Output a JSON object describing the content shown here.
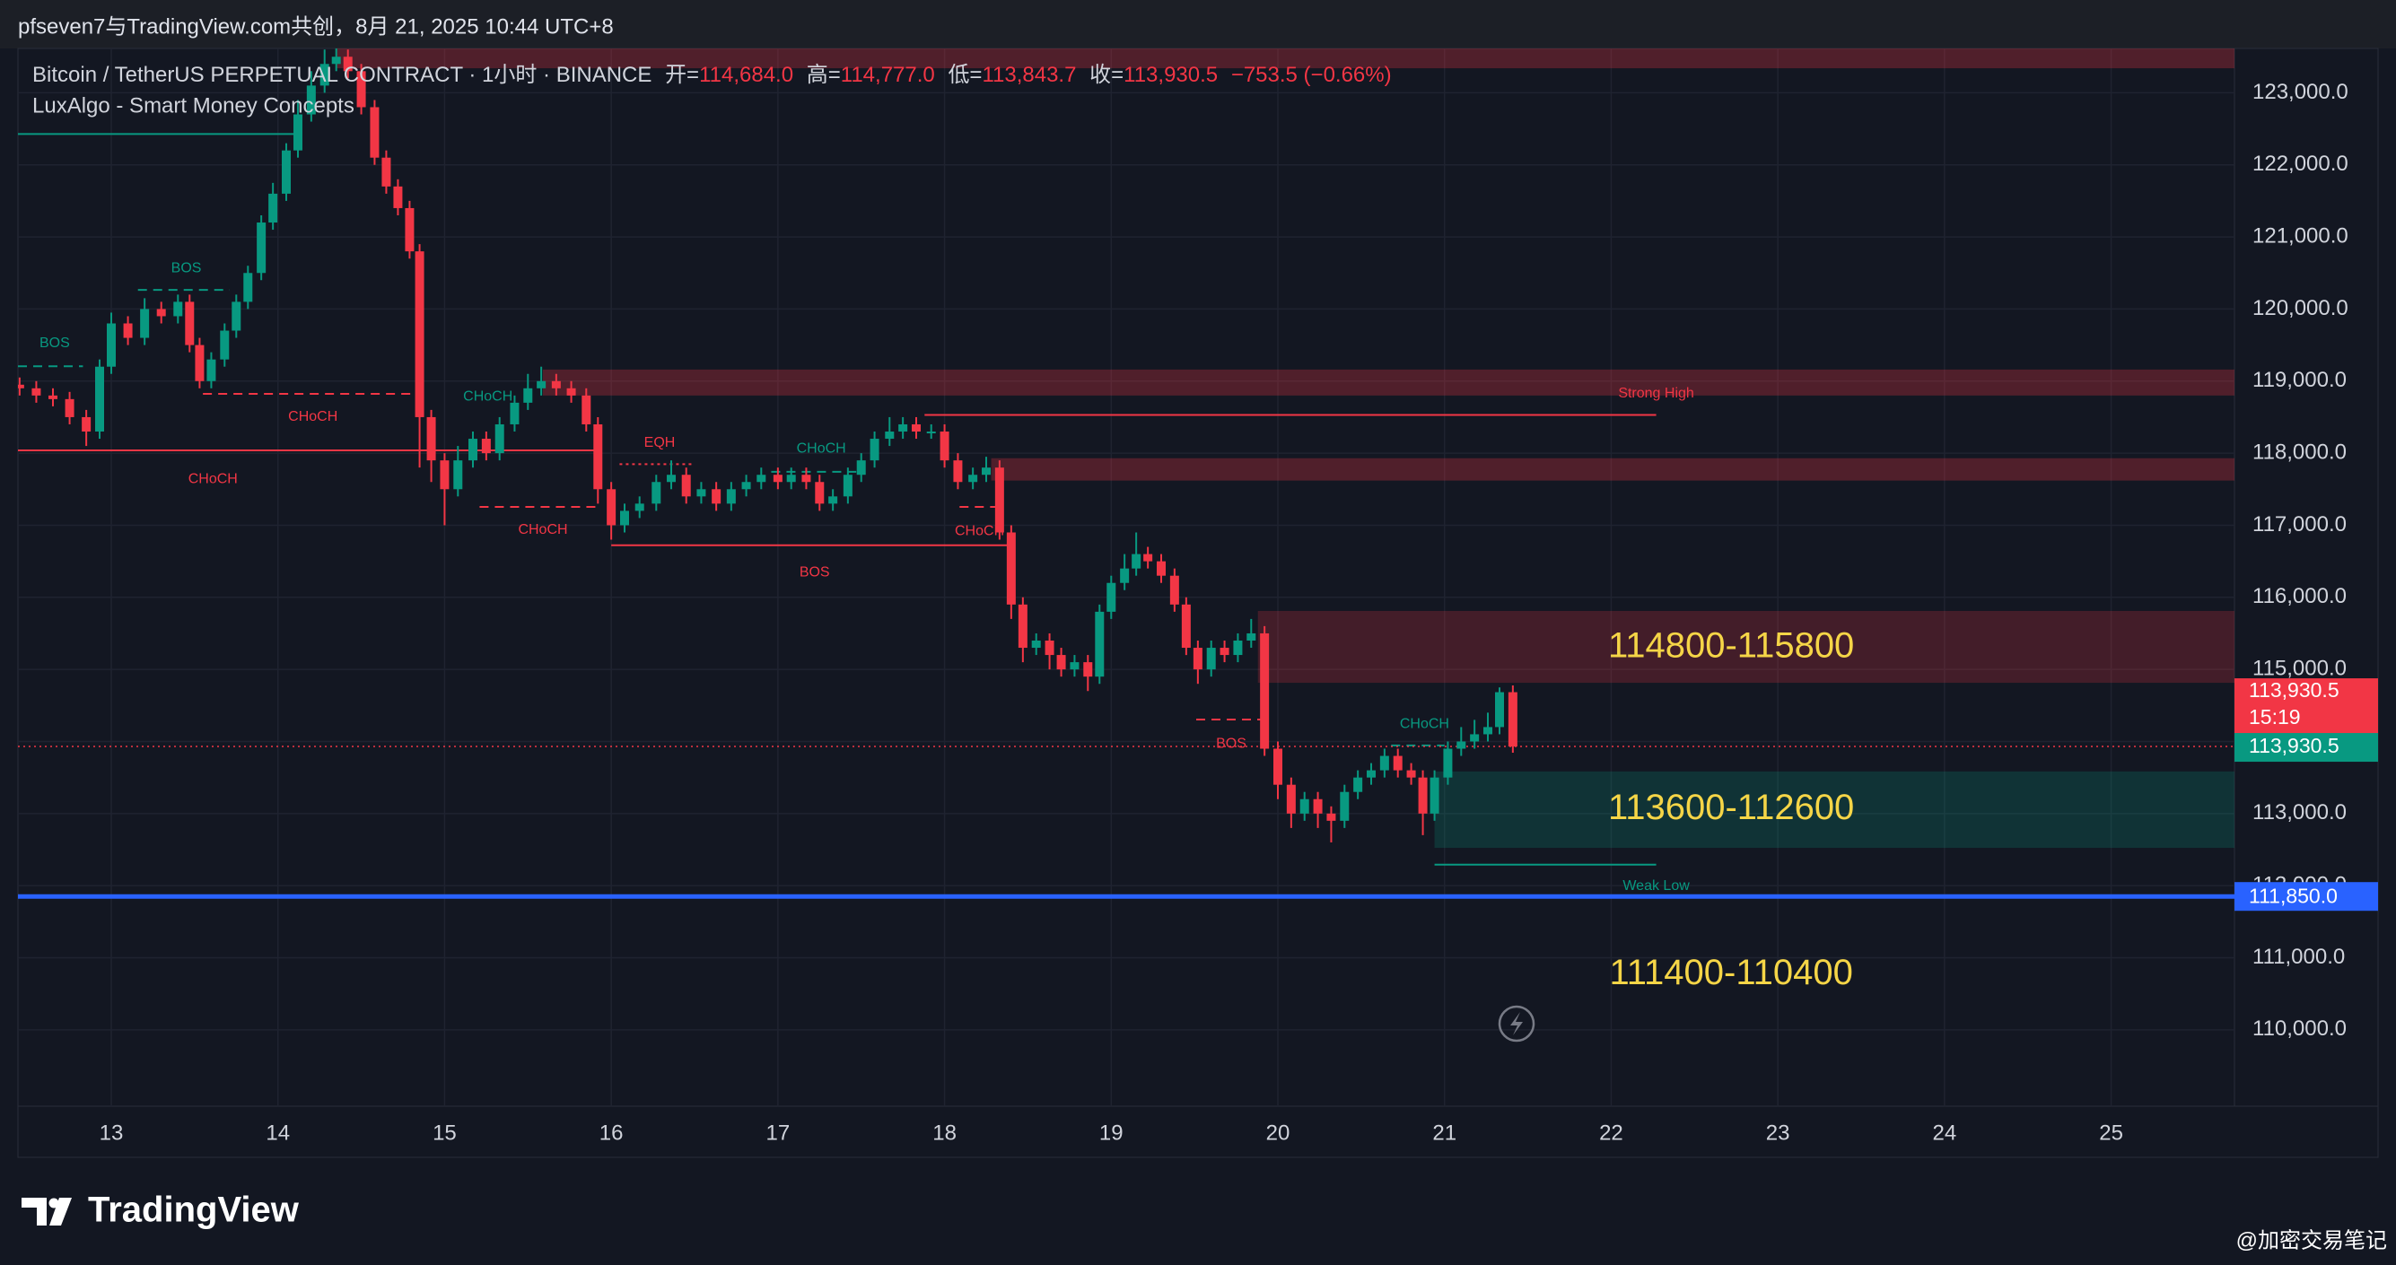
{
  "header": {
    "caption": "pfseven7与TradingView.com共创，8月 21, 2025 10:44 UTC+8"
  },
  "legend": {
    "symbol": "Bitcoin / TetherUS PERPETUAL CONTRACT · 1小时 · BINANCE",
    "ohlc": [
      {
        "key": "开=",
        "value": "114,684.0"
      },
      {
        "key": "高=",
        "value": "114,777.0"
      },
      {
        "key": "低=",
        "value": "113,843.7"
      },
      {
        "key": "收=",
        "value": "113,930.5"
      }
    ],
    "change": "−753.5 (−0.66%)",
    "indicator": "LuxAlgo - Smart Money Concepts"
  },
  "footer": {
    "brand": "TradingView",
    "watermark": "@加密交易笔记"
  },
  "chart_data": {
    "type": "candlestick",
    "up_color": "#089981",
    "down_color": "#f23645",
    "grid": true,
    "xlim": [
      12.44,
      25.74
    ],
    "ylim": [
      108940,
      123615
    ],
    "xticks": [
      13,
      14,
      15,
      16,
      17,
      18,
      19,
      20,
      21,
      22,
      23,
      24,
      25
    ],
    "yticks": [
      {
        "value": 110000,
        "label": "110,000.0"
      },
      {
        "value": 111000,
        "label": "111,000.0"
      },
      {
        "value": 112000,
        "label": "112,000.0"
      },
      {
        "value": 113000,
        "label": "113,000.0"
      },
      {
        "value": 114000,
        "label": "114,000.0"
      },
      {
        "value": 115000,
        "label": "115,000.0"
      },
      {
        "value": 116000,
        "label": "116,000.0"
      },
      {
        "value": 117000,
        "label": "117,000.0"
      },
      {
        "value": 118000,
        "label": "118,000.0"
      },
      {
        "value": 119000,
        "label": "119,000.0"
      },
      {
        "value": 120000,
        "label": "120,000.0"
      },
      {
        "value": 121000,
        "label": "121,000.0"
      },
      {
        "value": 122000,
        "label": "122,000.0"
      },
      {
        "value": 123000,
        "label": "123,000.0"
      }
    ],
    "x": [
      12.45,
      12.55,
      12.65,
      12.75,
      12.85,
      12.93,
      13.0,
      13.1,
      13.2,
      13.3,
      13.4,
      13.47,
      13.53,
      13.6,
      13.68,
      13.75,
      13.82,
      13.9,
      13.97,
      14.05,
      14.12,
      14.2,
      14.28,
      14.35,
      14.42,
      14.5,
      14.58,
      14.65,
      14.72,
      14.79,
      14.85,
      14.92,
      15.0,
      15.08,
      15.17,
      15.25,
      15.33,
      15.42,
      15.5,
      15.58,
      15.67,
      15.76,
      15.85,
      15.92,
      16.0,
      16.08,
      16.17,
      16.27,
      16.36,
      16.45,
      16.54,
      16.63,
      16.72,
      16.81,
      16.9,
      17.0,
      17.08,
      17.17,
      17.25,
      17.33,
      17.42,
      17.5,
      17.58,
      17.67,
      17.75,
      17.83,
      17.92,
      18.0,
      18.08,
      18.17,
      18.25,
      18.33,
      18.4,
      18.47,
      18.55,
      18.63,
      18.7,
      18.78,
      18.86,
      18.93,
      19.0,
      19.08,
      19.15,
      19.22,
      19.3,
      19.38,
      19.45,
      19.52,
      19.6,
      19.68,
      19.76,
      19.84,
      19.92,
      20.0,
      20.08,
      20.16,
      20.24,
      20.32,
      20.4,
      20.48,
      20.56,
      20.64,
      20.72,
      20.8,
      20.87,
      20.94,
      21.02,
      21.1,
      21.18,
      21.26,
      21.33,
      21.41
    ],
    "open": [
      118950,
      118900,
      118800,
      118750,
      118500,
      118300,
      119200,
      119800,
      119600,
      120000,
      119900,
      120100,
      119500,
      119000,
      119300,
      119700,
      120100,
      120500,
      121200,
      121600,
      122200,
      122700,
      123100,
      123400,
      123500,
      123300,
      122800,
      122100,
      121700,
      121400,
      120800,
      118500,
      117900,
      117500,
      117900,
      118200,
      118000,
      118400,
      118700,
      118900,
      119000,
      118900,
      118800,
      118400,
      117500,
      117000,
      117200,
      117300,
      117600,
      117700,
      117400,
      117500,
      117300,
      117500,
      117600,
      117700,
      117600,
      117700,
      117600,
      117300,
      117400,
      117700,
      117900,
      118200,
      118300,
      118400,
      118300,
      118300,
      117900,
      117600,
      117700,
      117800,
      116900,
      115900,
      115300,
      115400,
      115200,
      115000,
      115100,
      114900,
      115800,
      116200,
      116400,
      116600,
      116500,
      116300,
      115900,
      115300,
      115000,
      115300,
      115200,
      115400,
      115500,
      113900,
      113400,
      113000,
      113200,
      113000,
      112900,
      113300,
      113500,
      113600,
      113800,
      113600,
      113500,
      113000,
      113500,
      113900,
      114000,
      114100,
      114200,
      114684
    ],
    "high": [
      119050,
      119000,
      118900,
      118850,
      118600,
      119300,
      119950,
      119900,
      120150,
      120100,
      120200,
      120200,
      119600,
      119400,
      119800,
      120200,
      120600,
      121300,
      121750,
      122300,
      122900,
      123300,
      123600,
      123650,
      123600,
      123400,
      122900,
      122200,
      121800,
      121500,
      120900,
      118600,
      118000,
      118100,
      118300,
      118300,
      118500,
      118800,
      119100,
      119200,
      119100,
      119000,
      118900,
      118500,
      117600,
      117300,
      117400,
      117700,
      117900,
      117800,
      117600,
      117600,
      117600,
      117700,
      117800,
      117800,
      117800,
      117800,
      117700,
      117500,
      117800,
      118000,
      118300,
      118500,
      118500,
      118500,
      118400,
      118400,
      118000,
      117800,
      117950,
      117900,
      117000,
      116000,
      115500,
      115500,
      115300,
      115200,
      115200,
      115900,
      116300,
      116600,
      116900,
      116700,
      116600,
      116400,
      116000,
      115400,
      115400,
      115400,
      115500,
      115700,
      115600,
      114000,
      113500,
      113300,
      113300,
      113100,
      113400,
      113600,
      113700,
      113900,
      113900,
      113700,
      113600,
      113600,
      114000,
      114200,
      114300,
      114400,
      114750,
      114777
    ],
    "low": [
      118800,
      118700,
      118650,
      118400,
      118100,
      118200,
      119100,
      119500,
      119500,
      119800,
      119800,
      119400,
      118900,
      118900,
      119200,
      119600,
      120000,
      120400,
      121100,
      121500,
      122100,
      122600,
      123000,
      123300,
      123200,
      122700,
      122000,
      121600,
      121300,
      120700,
      117800,
      117600,
      117000,
      117400,
      117800,
      117900,
      117900,
      118300,
      118600,
      118800,
      118800,
      118700,
      118300,
      117300,
      116800,
      116900,
      117100,
      117200,
      117500,
      117300,
      117300,
      117200,
      117200,
      117400,
      117500,
      117500,
      117500,
      117500,
      117200,
      117200,
      117300,
      117600,
      117800,
      118100,
      118200,
      118200,
      118200,
      117800,
      117500,
      117500,
      117600,
      116800,
      115700,
      115100,
      115200,
      115000,
      114900,
      114900,
      114700,
      114800,
      115700,
      116100,
      116300,
      116400,
      116200,
      115800,
      115200,
      114800,
      114900,
      115100,
      115100,
      115300,
      113800,
      113200,
      112800,
      112900,
      112800,
      112600,
      112800,
      113200,
      113400,
      113500,
      113500,
      113400,
      112700,
      112900,
      113400,
      113800,
      113900,
      114000,
      114100,
      113843.7
    ],
    "close": [
      118900,
      118800,
      118750,
      118500,
      118300,
      119200,
      119800,
      119600,
      120000,
      119900,
      120100,
      119500,
      119000,
      119300,
      119700,
      120100,
      120500,
      121200,
      121600,
      122200,
      122700,
      123100,
      123400,
      123500,
      123300,
      122800,
      122100,
      121700,
      121400,
      120800,
      118500,
      117900,
      117500,
      117900,
      118200,
      118000,
      118400,
      118700,
      118900,
      119000,
      118900,
      118800,
      118400,
      117500,
      117000,
      117200,
      117300,
      117600,
      117700,
      117400,
      117500,
      117300,
      117500,
      117600,
      117700,
      117600,
      117700,
      117600,
      117300,
      117400,
      117700,
      117900,
      118200,
      118300,
      118400,
      118300,
      118300,
      117900,
      117600,
      117700,
      117800,
      116900,
      115900,
      115300,
      115400,
      115200,
      115000,
      115100,
      114900,
      115800,
      116200,
      116400,
      116600,
      116500,
      116300,
      115900,
      115300,
      115000,
      115300,
      115200,
      115400,
      115500,
      113900,
      113400,
      113000,
      113200,
      113000,
      112900,
      113300,
      113500,
      113600,
      113800,
      113600,
      113500,
      113000,
      113500,
      113900,
      114000,
      114100,
      114200,
      114684,
      113930.5
    ],
    "zones": [
      {
        "top": 123615,
        "bottom": 123340,
        "x_start": 14.35,
        "color": "rgba(242,54,69,0.28)"
      },
      {
        "top": 119160,
        "bottom": 118800,
        "x_start": 15.59,
        "color": "rgba(242,54,69,0.28)"
      },
      {
        "top": 117930,
        "bottom": 117620,
        "x_start": 18.28,
        "color": "rgba(242,54,69,0.28)"
      },
      {
        "top": 115811,
        "bottom": 114814,
        "x_start": 19.88,
        "color": "rgba(242,54,69,0.22)"
      },
      {
        "top": 113584,
        "bottom": 112524,
        "x_start": 20.94,
        "color": "rgba(8,153,129,0.22)"
      }
    ],
    "range_labels": [
      {
        "text": "114800-115800",
        "x": 22.72,
        "price": 115302
      },
      {
        "text": "113600-112600",
        "x": 22.72,
        "price": 113054
      },
      {
        "text": "111400-110400",
        "x": 22.72,
        "price": 110764
      }
    ],
    "range_label_color": "#f5d547",
    "structures": [
      {
        "x_start": 12.44,
        "x_end": 14.12,
        "price": 122428,
        "color": "#089981",
        "style": "solid"
      },
      {
        "x_start": 12.44,
        "x_end": 12.83,
        "price": 119205,
        "color": "#089981",
        "style": "dashed"
      },
      {
        "x_start": 13.16,
        "x_end": 13.71,
        "price": 120265,
        "color": "#089981",
        "style": "dashed"
      },
      {
        "x_start": 13.55,
        "x_end": 14.85,
        "price": 118823,
        "color": "#f23645",
        "style": "dashed"
      },
      {
        "x_start": 12.44,
        "x_end": 15.91,
        "price": 118038,
        "color": "#f23645",
        "style": "solid"
      },
      {
        "x_start": 15.21,
        "x_end": 15.91,
        "price": 117254,
        "color": "#f23645",
        "style": "dashed"
      },
      {
        "x_start": 16.05,
        "x_end": 16.5,
        "price": 117847,
        "color": "#f23645",
        "style": "dotted"
      },
      {
        "x_start": 16.96,
        "x_end": 17.47,
        "price": 117741,
        "color": "#089981",
        "style": "dashed"
      },
      {
        "x_start": 16.0,
        "x_end": 18.39,
        "price": 116723,
        "color": "#f23645",
        "style": "solid"
      },
      {
        "x_start": 18.09,
        "x_end": 18.34,
        "price": 117254,
        "color": "#f23645",
        "style": "dashed"
      },
      {
        "x_start": 17.88,
        "x_end": 22.27,
        "price": 118530,
        "color": "#f23645",
        "style": "solid"
      },
      {
        "x_start": 19.51,
        "x_end": 19.93,
        "price": 114305,
        "color": "#f23645",
        "style": "dashed"
      },
      {
        "x_start": 20.68,
        "x_end": 21.0,
        "price": 113945,
        "color": "#089981",
        "style": "dashed"
      },
      {
        "x_start": 20.94,
        "x_end": 22.27,
        "price": 112291,
        "color": "#089981",
        "style": "solid"
      }
    ],
    "annotations": [
      {
        "text": "BOS",
        "x": 12.66,
        "price": 119523,
        "color": "#089981"
      },
      {
        "text": "BOS",
        "x": 13.45,
        "price": 120562,
        "color": "#089981"
      },
      {
        "text": "CHoCH",
        "x": 14.21,
        "price": 118505,
        "color": "#f23645"
      },
      {
        "text": "CHoCH",
        "x": 13.61,
        "price": 117635,
        "color": "#f23645"
      },
      {
        "text": "CHoCH",
        "x": 15.26,
        "price": 118781,
        "color": "#089981"
      },
      {
        "text": "CHoCH",
        "x": 15.59,
        "price": 116935,
        "color": "#f23645"
      },
      {
        "text": "EQH",
        "x": 16.29,
        "price": 118144,
        "color": "#f23645"
      },
      {
        "text": "CHoCH",
        "x": 17.26,
        "price": 118059,
        "color": "#089981"
      },
      {
        "text": "CHoCH",
        "x": 18.21,
        "price": 116914,
        "color": "#f23645"
      },
      {
        "text": "BOS",
        "x": 17.22,
        "price": 116341,
        "color": "#f23645"
      },
      {
        "text": "BOS",
        "x": 19.72,
        "price": 113966,
        "color": "#f23645"
      },
      {
        "text": "CHoCH",
        "x": 20.88,
        "price": 114242,
        "color": "#089981"
      },
      {
        "text": "Strong High",
        "x": 22.27,
        "price": 118823,
        "color": "#f23645"
      },
      {
        "text": "Weak Low",
        "x": 22.27,
        "price": 111994,
        "color": "#089981"
      }
    ],
    "last_price": {
      "value": 113930.5,
      "label": "113,930.5",
      "countdown": "15:19",
      "color": "#f23645",
      "box_color": "#089981"
    },
    "level": {
      "value": 111850,
      "label": "111,850.0",
      "color": "#2962ff"
    }
  }
}
